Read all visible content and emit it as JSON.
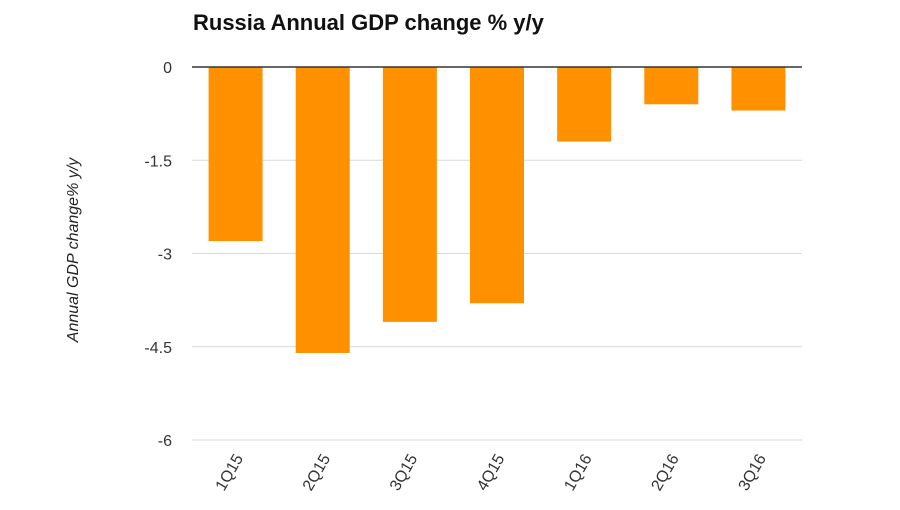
{
  "chart_data": {
    "type": "bar",
    "title": "Russia Annual GDP change % y/y",
    "xlabel": "",
    "ylabel": "Annual GDP change% y/y",
    "categories": [
      "1Q15",
      "2Q15",
      "3Q15",
      "4Q15",
      "1Q16",
      "2Q16",
      "3Q16"
    ],
    "values": [
      -2.8,
      -4.6,
      -4.1,
      -3.8,
      -1.2,
      -0.6,
      -0.7
    ],
    "ylim": [
      -6,
      0
    ],
    "yticks": [
      "0",
      "-1.5",
      "-3",
      "-4.5",
      "-6"
    ],
    "grid": true,
    "legend": "none",
    "colors": {
      "bar": "#FF9100",
      "grid": "#d9d9d9",
      "zero_line": "#333333"
    }
  }
}
